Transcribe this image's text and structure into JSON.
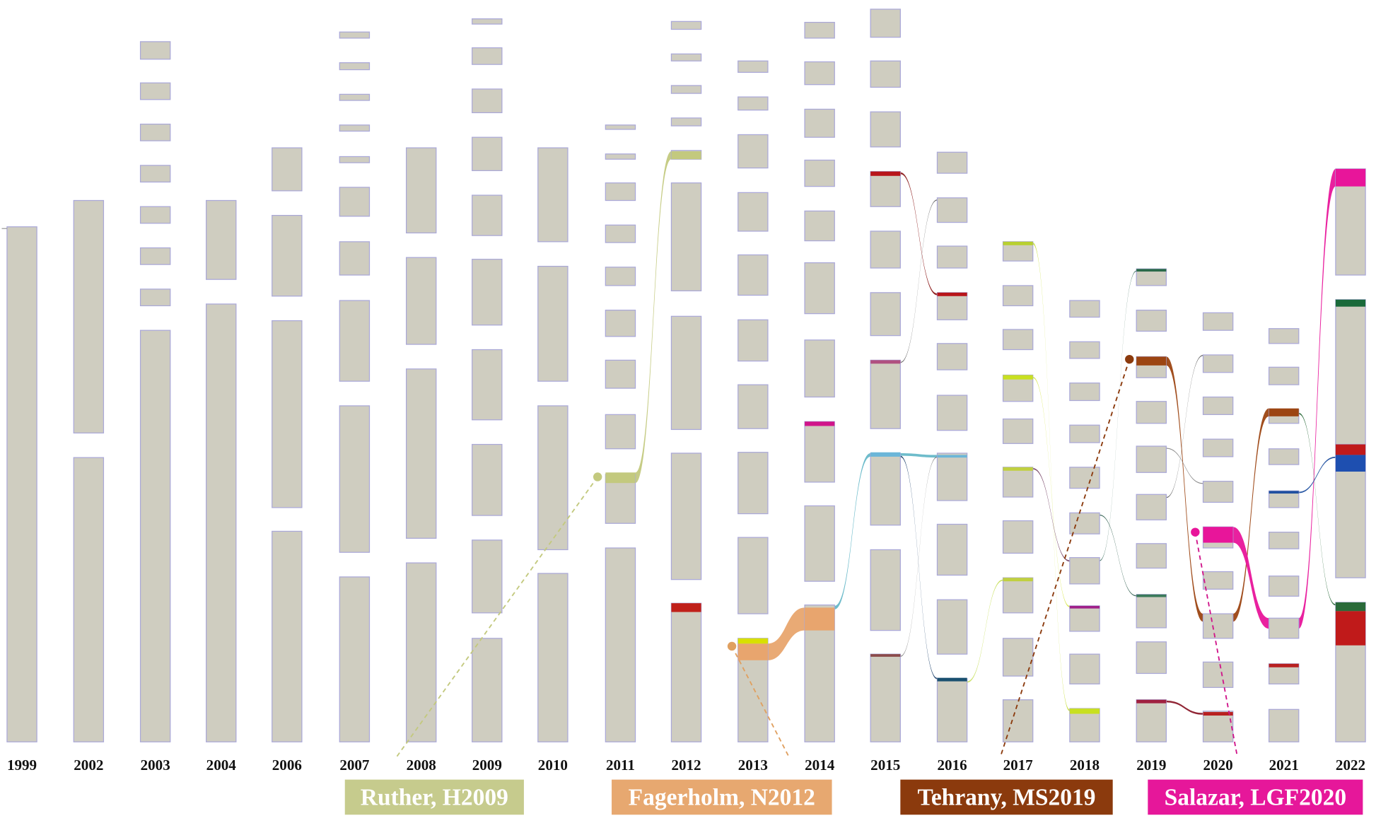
{
  "years": [
    "1999",
    "2002",
    "2003",
    "2004",
    "2006",
    "2007",
    "2008",
    "2009",
    "2010",
    "2011",
    "2012",
    "2013",
    "2014",
    "2015",
    "2016",
    "2017",
    "2018",
    "2019",
    "2020",
    "2021",
    "2022"
  ],
  "references": [
    "Ruther, H2009",
    "Fagerholm, N2012",
    "Tehrany, MS2019",
    "Salazar, LGF2020"
  ]
}
